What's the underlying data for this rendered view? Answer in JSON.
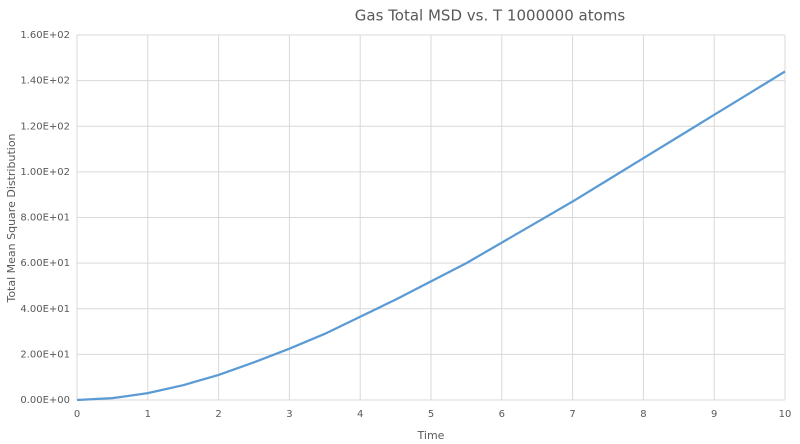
{
  "chart_data": {
    "type": "line",
    "title": "Gas Total MSD vs. T 1000000 atoms",
    "x_label": "Time",
    "y_label": "Total Mean Square Distribution",
    "x": [
      0,
      0.5,
      1,
      1.5,
      2,
      2.5,
      3,
      3.5,
      4,
      4.5,
      5,
      5.5,
      6,
      6.5,
      7,
      7.5,
      8,
      8.5,
      9,
      9.5,
      10
    ],
    "series": [
      {
        "name": "Total MSD",
        "color": "#5b9bd5",
        "values": [
          0,
          0.8,
          3,
          6.5,
          11,
          16.5,
          22.5,
          29,
          36.5,
          44,
          52,
          60,
          69,
          78,
          87,
          96.5,
          106,
          115.5,
          125,
          134.5,
          144
        ]
      }
    ],
    "xlim": [
      0,
      10
    ],
    "xticks": [
      0,
      1,
      2,
      3,
      4,
      5,
      6,
      7,
      8,
      9,
      10
    ],
    "ylim": [
      0,
      160
    ],
    "yticks": [
      {
        "value": 0,
        "label": "0.00E+00"
      },
      {
        "value": 20,
        "label": "2.00E+01"
      },
      {
        "value": 40,
        "label": "4.00E+01"
      },
      {
        "value": 60,
        "label": "6.00E+01"
      },
      {
        "value": 80,
        "label": "8.00E+01"
      },
      {
        "value": 100,
        "label": "1.00E+02"
      },
      {
        "value": 120,
        "label": "1.20E+02"
      },
      {
        "value": 140,
        "label": "1.40E+02"
      },
      {
        "value": 160,
        "label": "1.60E+02"
      }
    ],
    "grid": true
  }
}
